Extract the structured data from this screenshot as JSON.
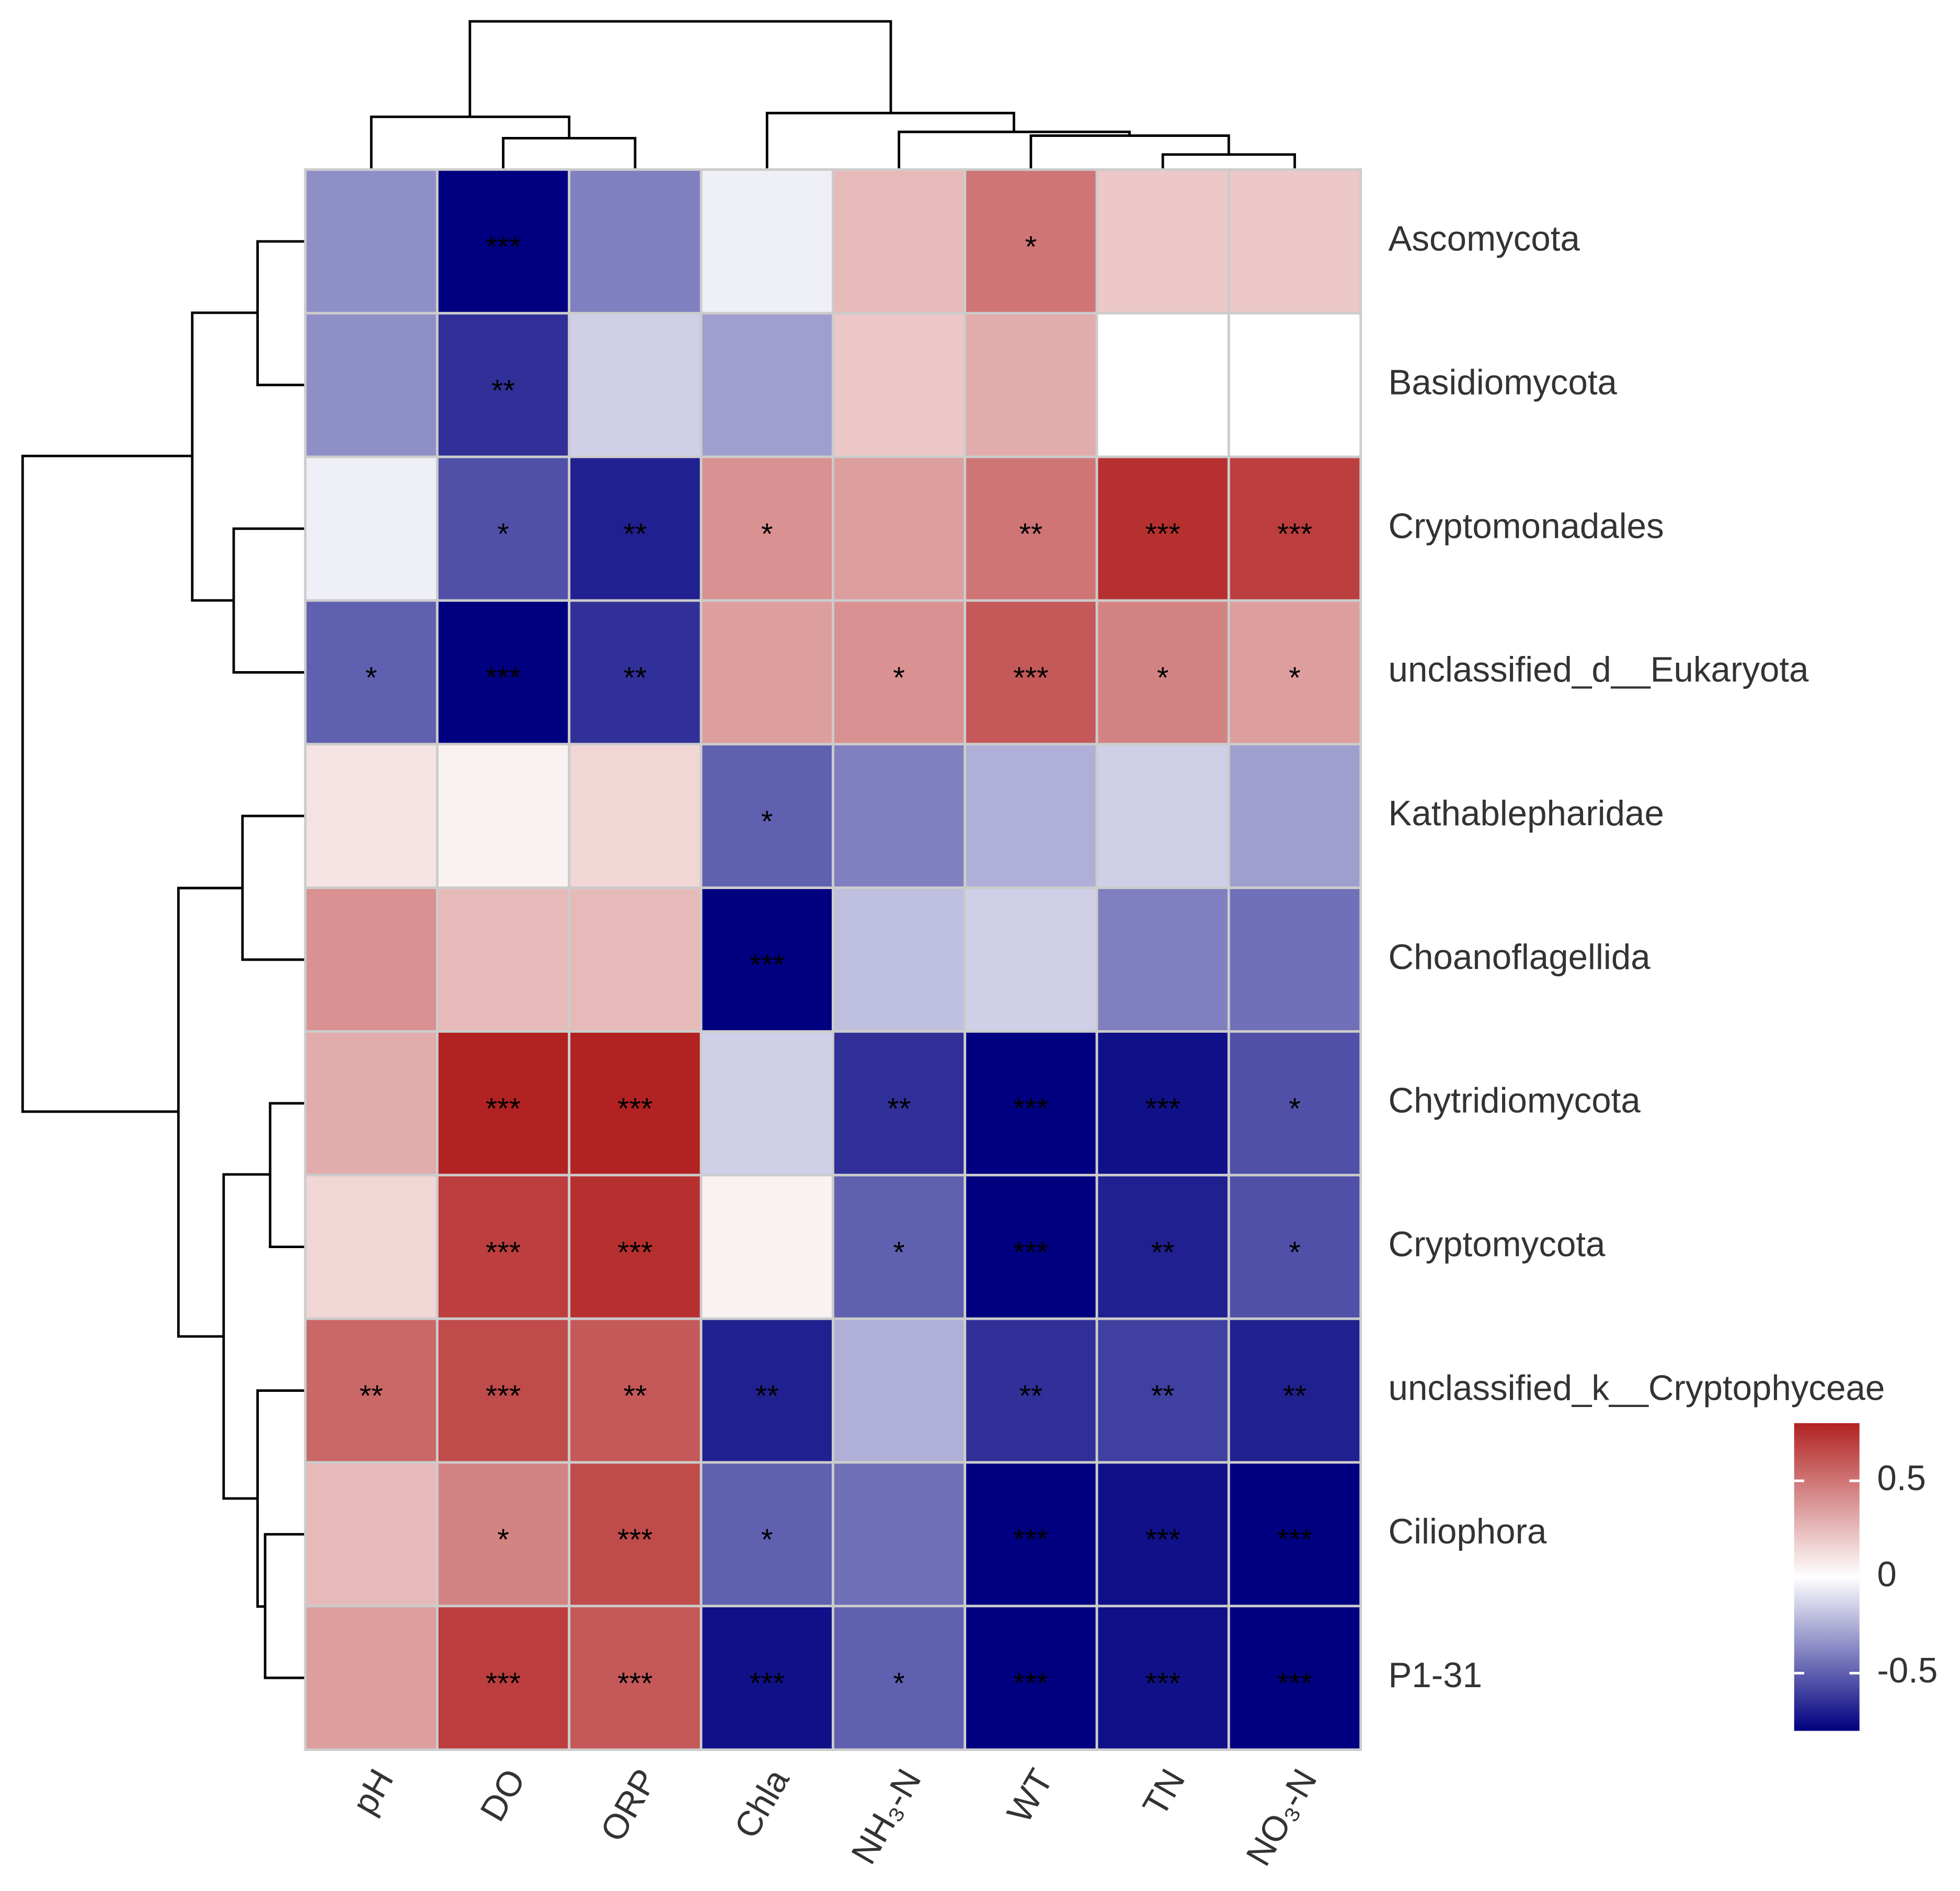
{
  "chart_data": {
    "type": "heatmap",
    "columns": [
      "pH",
      "DO",
      "ORP",
      "Chla",
      "NH₃-N",
      "WT",
      "TN",
      "NO₃-N"
    ],
    "rows": [
      "Ascomycota",
      "Basidiomycota",
      "Cryptomonadales",
      "unclassified_d__Eukaryota",
      "Kathablepharidae",
      "Choanoflagellida",
      "Chytridiomycota",
      "Cryptomycota",
      "unclassified_k__Cryptophyceae",
      "Ciliophora",
      "P1-31"
    ],
    "values": [
      [
        -0.35,
        -0.8,
        -0.4,
        -0.05,
        0.25,
        0.5,
        0.2,
        0.2
      ],
      [
        -0.35,
        -0.65,
        -0.15,
        -0.3,
        0.2,
        0.3,
        0.0,
        0.0
      ],
      [
        -0.05,
        -0.55,
        -0.7,
        0.4,
        0.35,
        0.5,
        0.75,
        0.7
      ],
      [
        -0.5,
        -0.8,
        -0.65,
        0.35,
        0.4,
        0.6,
        0.45,
        0.35
      ],
      [
        0.1,
        0.05,
        0.15,
        -0.5,
        -0.4,
        -0.25,
        -0.15,
        -0.3
      ],
      [
        0.4,
        0.25,
        0.25,
        -0.8,
        -0.2,
        -0.15,
        -0.4,
        -0.45
      ],
      [
        0.3,
        0.8,
        0.8,
        -0.15,
        -0.65,
        -0.8,
        -0.75,
        -0.55
      ],
      [
        0.15,
        0.7,
        0.75,
        0.05,
        -0.5,
        -0.8,
        -0.7,
        -0.55
      ],
      [
        0.55,
        0.65,
        0.6,
        -0.7,
        -0.25,
        -0.65,
        -0.6,
        -0.7
      ],
      [
        0.25,
        0.45,
        0.65,
        -0.5,
        -0.45,
        -0.8,
        -0.75,
        -0.8
      ],
      [
        0.35,
        0.7,
        0.6,
        -0.75,
        -0.5,
        -0.8,
        -0.75,
        -0.8
      ]
    ],
    "annotations": [
      [
        null,
        "***",
        null,
        null,
        null,
        "*",
        null,
        null
      ],
      [
        null,
        "**",
        null,
        null,
        null,
        null,
        null,
        null
      ],
      [
        null,
        "*",
        "**",
        "*",
        null,
        "**",
        "***",
        "***"
      ],
      [
        "*",
        "***",
        "**",
        null,
        "*",
        "***",
        "*",
        "*"
      ],
      [
        null,
        null,
        null,
        "*",
        null,
        null,
        null,
        null
      ],
      [
        null,
        null,
        null,
        "***",
        null,
        null,
        null,
        null
      ],
      [
        null,
        "***",
        "***",
        null,
        "**",
        "***",
        "***",
        "*"
      ],
      [
        null,
        "***",
        "***",
        null,
        "*",
        "***",
        "**",
        "*"
      ],
      [
        "**",
        "***",
        "**",
        "**",
        null,
        "**",
        "**",
        "**"
      ],
      [
        null,
        "*",
        "***",
        "*",
        null,
        "***",
        "***",
        "***"
      ],
      [
        null,
        "***",
        "***",
        "***",
        "*",
        "***",
        "***",
        "***"
      ]
    ],
    "colors": [
      "#000080",
      "#ffffff",
      "#b22222"
    ],
    "clim": [
      -0.8,
      0.8
    ],
    "cticks": [
      0.5,
      0,
      -0.5
    ]
  }
}
